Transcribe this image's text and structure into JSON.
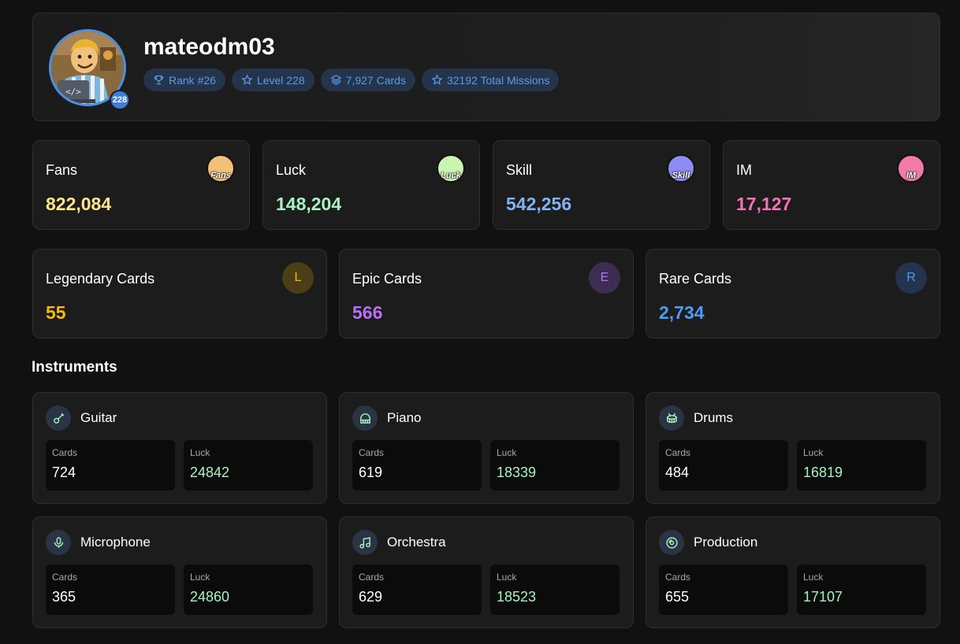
{
  "profile": {
    "username": "mateodm03",
    "level_badge": "228",
    "pills": [
      {
        "icon": "trophy-icon",
        "label": "Rank #26"
      },
      {
        "icon": "star-icon",
        "label": "Level 228"
      },
      {
        "icon": "layers-icon",
        "label": "7,927 Cards"
      },
      {
        "icon": "star-icon",
        "label": "32192 Total Missions"
      }
    ]
  },
  "stats": [
    {
      "label": "Fans",
      "value": "822,084",
      "color": "#fde68a",
      "icon_text": "Fans",
      "icon_bg": "#f3c07a"
    },
    {
      "label": "Luck",
      "value": "148,204",
      "color": "#a7f3c0",
      "icon_text": "Luck",
      "icon_bg": "#c9f5b0"
    },
    {
      "label": "Skill",
      "value": "542,256",
      "color": "#7fb3f5",
      "icon_text": "Skill",
      "icon_bg": "#8c8cf2"
    },
    {
      "label": "IM",
      "value": "17,127",
      "color": "#f472b6",
      "icon_text": "IM",
      "icon_bg": "#f27aa8"
    }
  ],
  "rarities": [
    {
      "label": "Legendary Cards",
      "value": "55",
      "letter": "L",
      "color": "#f5b914",
      "icon_bg": "#4a3e16"
    },
    {
      "label": "Epic Cards",
      "value": "566",
      "letter": "E",
      "color": "#b86ef5",
      "icon_bg": "#3e2d52"
    },
    {
      "label": "Rare Cards",
      "value": "2,734",
      "letter": "R",
      "color": "#4d9cf5",
      "icon_bg": "#24344e"
    }
  ],
  "instruments_title": "Instruments",
  "instruments": [
    {
      "name": "Guitar",
      "icon": "guitar-icon",
      "cards_label": "Cards",
      "cards": "724",
      "luck_label": "Luck",
      "luck": "24842"
    },
    {
      "name": "Piano",
      "icon": "piano-icon",
      "cards_label": "Cards",
      "cards": "619",
      "luck_label": "Luck",
      "luck": "18339"
    },
    {
      "name": "Drums",
      "icon": "drum-icon",
      "cards_label": "Cards",
      "cards": "484",
      "luck_label": "Luck",
      "luck": "16819"
    },
    {
      "name": "Microphone",
      "icon": "microphone-icon",
      "cards_label": "Cards",
      "cards": "365",
      "luck_label": "Luck",
      "luck": "24860"
    },
    {
      "name": "Orchestra",
      "icon": "music-note-icon",
      "cards_label": "Cards",
      "cards": "629",
      "luck_label": "Luck",
      "luck": "18523"
    },
    {
      "name": "Production",
      "icon": "disc-icon",
      "cards_label": "Cards",
      "cards": "655",
      "luck_label": "Luck",
      "luck": "17107"
    }
  ],
  "colors": {
    "accent": "#4a8fe0",
    "luck_value": "#a7f3c0",
    "background": "#111111",
    "card": "#1c1c1c"
  }
}
